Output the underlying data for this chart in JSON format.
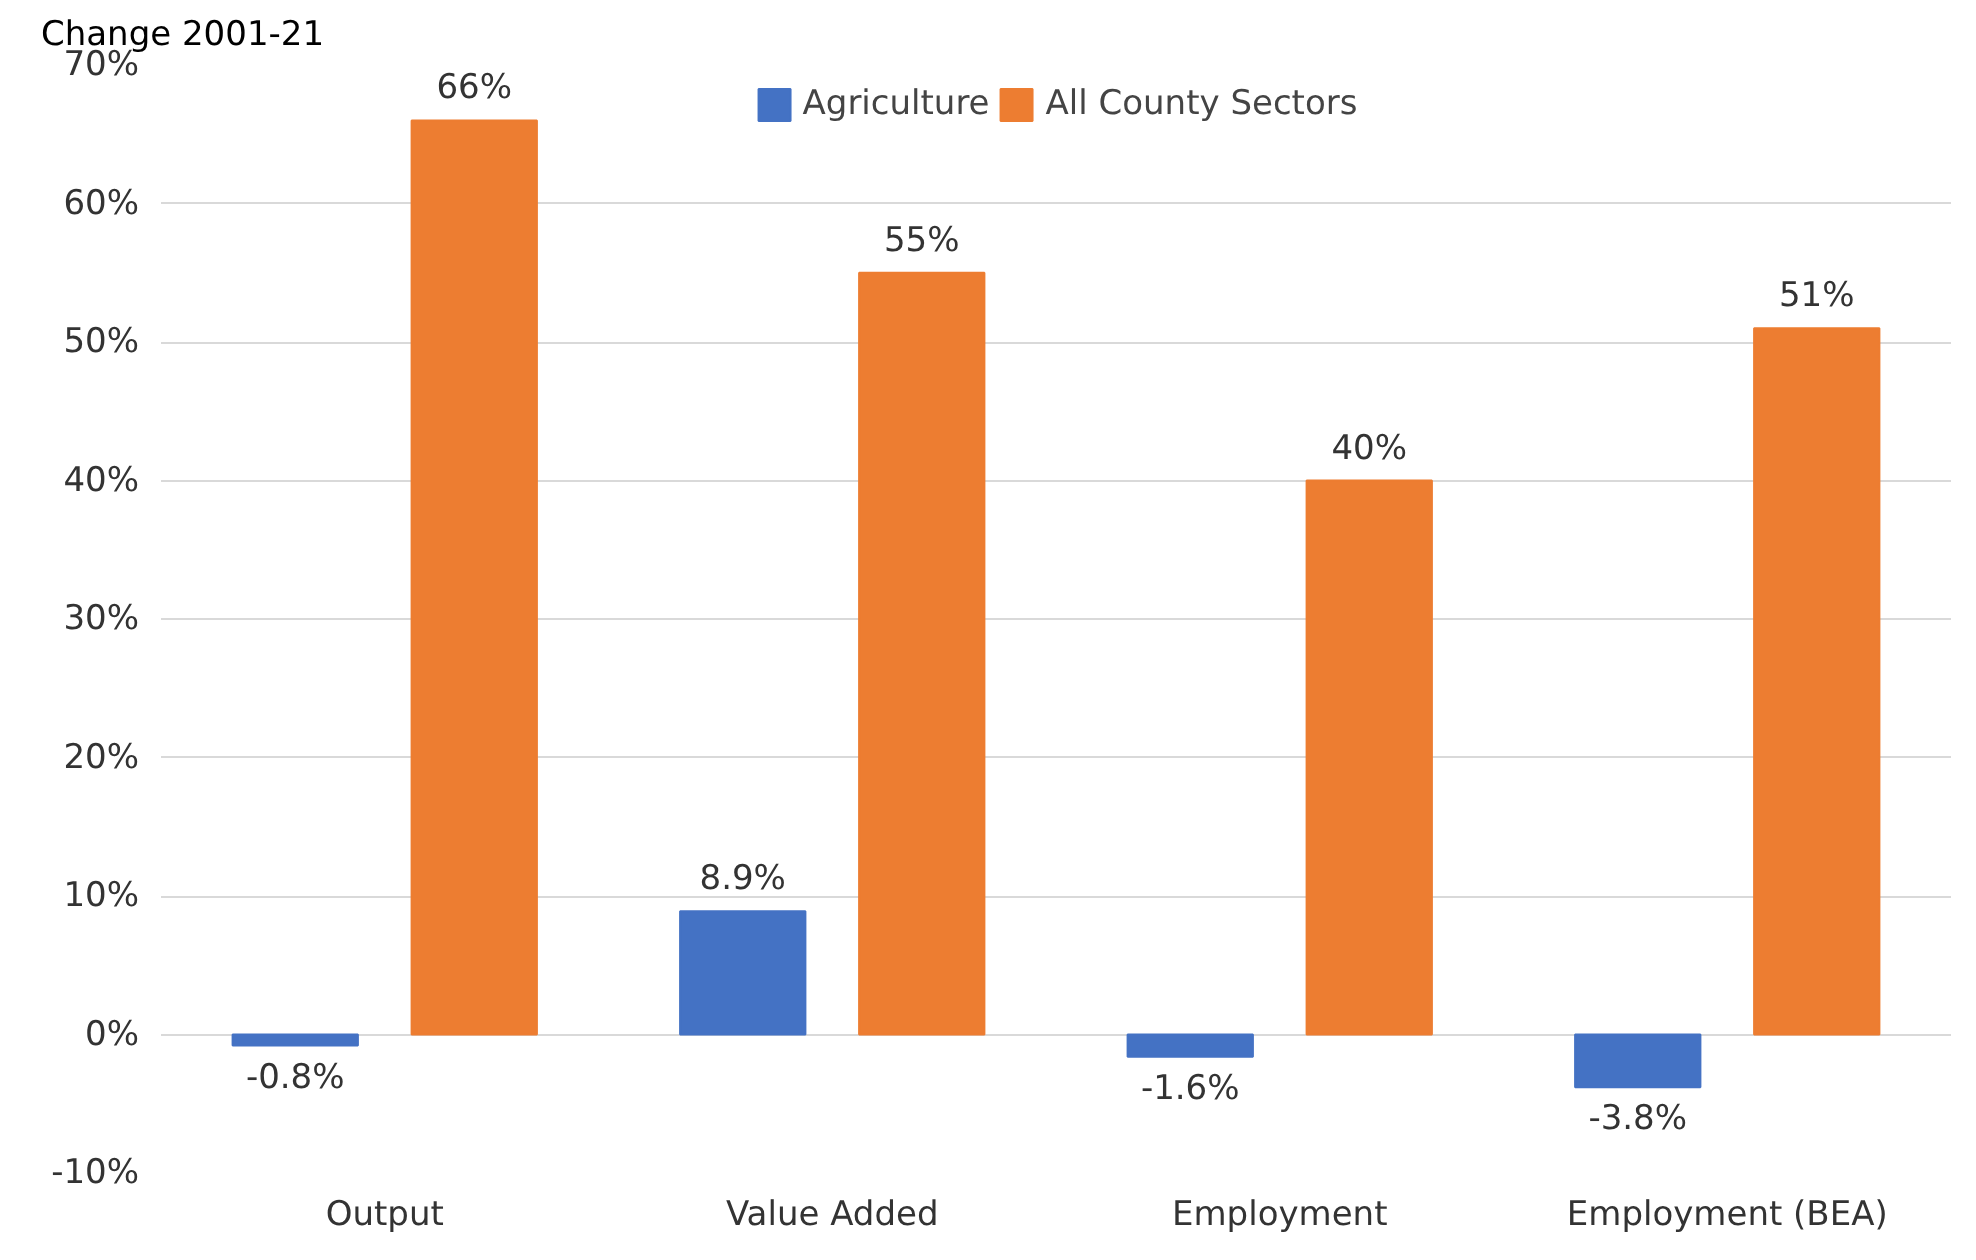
{
  "chart_data": {
    "type": "bar",
    "ylabel": "Change 2001-21",
    "categories": [
      "Output",
      "Value Added",
      "Employment",
      "Employment (BEA)"
    ],
    "series": [
      {
        "name": "Agriculture",
        "color": "#4472c4",
        "values": [
          -0.8,
          8.9,
          -1.6,
          -3.8
        ],
        "value_labels": [
          "-0.8%",
          "8.9%",
          "-1.6%",
          "-3.8%"
        ]
      },
      {
        "name": "All County Sectors",
        "color": "#ed7d31",
        "values": [
          66,
          55,
          40,
          51
        ],
        "value_labels": [
          "66%",
          "55%",
          "40%",
          "51%"
        ]
      }
    ],
    "ylim": [
      -10,
      70
    ],
    "yticks": [
      {
        "value": -10,
        "label": "-10%"
      },
      {
        "value": 0,
        "label": "0%"
      },
      {
        "value": 10,
        "label": "10%"
      },
      {
        "value": 20,
        "label": "20%"
      },
      {
        "value": 30,
        "label": "30%"
      },
      {
        "value": 40,
        "label": "40%"
      },
      {
        "value": 50,
        "label": "50%"
      },
      {
        "value": 60,
        "label": "60%"
      },
      {
        "value": 70,
        "label": "70%"
      }
    ],
    "grid": "y",
    "legend": "top"
  }
}
